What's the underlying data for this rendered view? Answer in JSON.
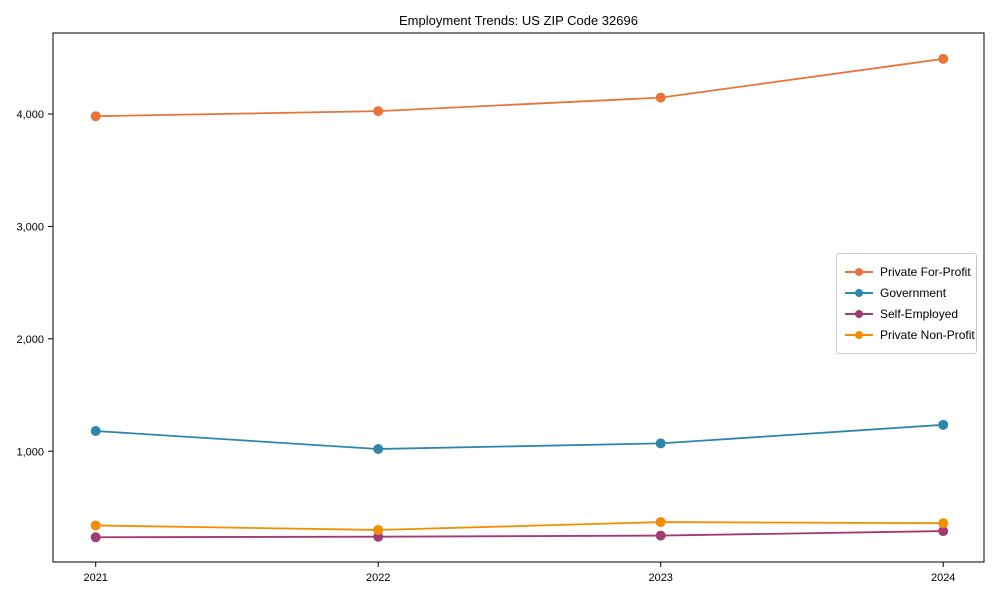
{
  "chart_data": {
    "type": "line",
    "title": "Employment Trends: US ZIP Code 32696",
    "xlabel": "",
    "ylabel": "",
    "x": [
      "2021",
      "2022",
      "2023",
      "2024"
    ],
    "series": [
      {
        "name": "Private For-Profit",
        "color": "#E8743B",
        "values": [
          3980,
          4025,
          4145,
          4490
        ]
      },
      {
        "name": "Government",
        "color": "#2E86AB",
        "values": [
          1180,
          1020,
          1070,
          1235
        ]
      },
      {
        "name": "Self-Employed",
        "color": "#A23B72",
        "values": [
          235,
          240,
          250,
          290
        ]
      },
      {
        "name": "Private Non-Profit",
        "color": "#F18F01",
        "values": [
          340,
          300,
          370,
          360
        ]
      }
    ],
    "yticks": [
      1000,
      2000,
      3000,
      4000
    ],
    "ytick_labels": [
      "1,000",
      "2,000",
      "3,000",
      "4,000"
    ],
    "ylim": [
      15,
      4720
    ],
    "grid": false,
    "legend_position": "center-right",
    "marker": "circle",
    "axis_color": "#000000"
  }
}
